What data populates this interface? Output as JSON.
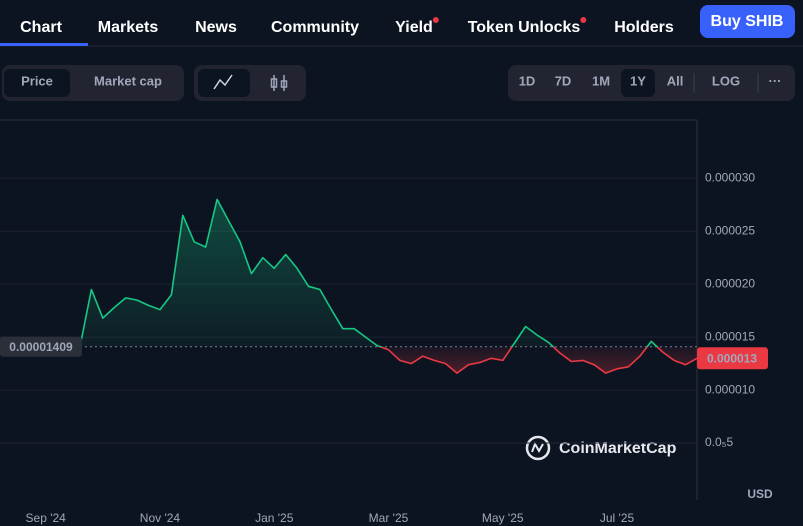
{
  "nav": {
    "tabs": [
      {
        "label": "Chart",
        "active": true
      },
      {
        "label": "Markets"
      },
      {
        "label": "News"
      },
      {
        "label": "Community"
      },
      {
        "label": "Yield",
        "notify": true
      },
      {
        "label": "Token Unlocks",
        "notify": true
      },
      {
        "label": "Holders"
      }
    ],
    "button": "Buy SHIB"
  },
  "toolbar": {
    "modes": [
      {
        "label": "Price",
        "active": true
      },
      {
        "label": "Market cap"
      }
    ],
    "ranges": [
      {
        "label": "1D"
      },
      {
        "label": "7D"
      },
      {
        "label": "1M"
      },
      {
        "label": "1Y",
        "active": true
      },
      {
        "label": "All"
      }
    ],
    "scale": "LOG",
    "more": "···"
  },
  "chart_data": {
    "type": "line",
    "categories": [
      null,
      null,
      null,
      null,
      "Sep '24",
      null,
      null,
      null,
      null,
      null,
      null,
      null,
      null,
      null,
      "Nov '24",
      null,
      null,
      null,
      null,
      null,
      null,
      null,
      null,
      null,
      "Jan '25",
      null,
      null,
      null,
      null,
      null,
      null,
      null,
      null,
      null,
      "Mar '25",
      null,
      null,
      null,
      null,
      null,
      null,
      null,
      null,
      null,
      "May '25",
      null,
      null,
      null,
      null,
      null,
      null,
      null,
      null,
      null,
      "Jul '25",
      null,
      null,
      null,
      null,
      null,
      null,
      null
    ],
    "values": [
      1.4e-05,
      1.42e-05,
      1.48e-05,
      1.41e-05,
      1.39e-05,
      1.41e-05,
      1.42e-05,
      1.41e-05,
      1.95e-05,
      1.68e-05,
      1.78e-05,
      1.87e-05,
      1.85e-05,
      1.8e-05,
      1.76e-05,
      1.9e-05,
      2.65e-05,
      2.4e-05,
      2.35e-05,
      2.8e-05,
      2.6e-05,
      2.4e-05,
      2.1e-05,
      2.25e-05,
      2.15e-05,
      2.28e-05,
      2.15e-05,
      1.98e-05,
      1.95e-05,
      1.76e-05,
      1.58e-05,
      1.58e-05,
      1.5e-05,
      1.42e-05,
      1.38e-05,
      1.28e-05,
      1.25e-05,
      1.32e-05,
      1.28e-05,
      1.25e-05,
      1.16e-05,
      1.24e-05,
      1.26e-05,
      1.3e-05,
      1.28e-05,
      1.44e-05,
      1.6e-05,
      1.52e-05,
      1.45e-05,
      1.35e-05,
      1.27e-05,
      1.28e-05,
      1.24e-05,
      1.16e-05,
      1.2e-05,
      1.22e-05,
      1.32e-05,
      1.46e-05,
      1.36e-05,
      1.28e-05,
      1.24e-05,
      1.3e-05
    ],
    "ylim": [
      0,
      3.55e-05
    ],
    "yticks": [
      {
        "value": 5e-06,
        "label": "0.0₅5"
      },
      {
        "value": 1e-05,
        "label": "0.000010"
      },
      1.5e-05,
      {
        "value": 2e-05,
        "label": "0.000020"
      },
      2.5e-05,
      {
        "value": 3e-05,
        "label": "0.000030"
      }
    ],
    "grid": true,
    "up_color": "#16c784",
    "down_color": "#ea3943",
    "reference_value": 1.409e-05,
    "y_axis_label": "USD",
    "watermark": "CoinMarketCap"
  }
}
